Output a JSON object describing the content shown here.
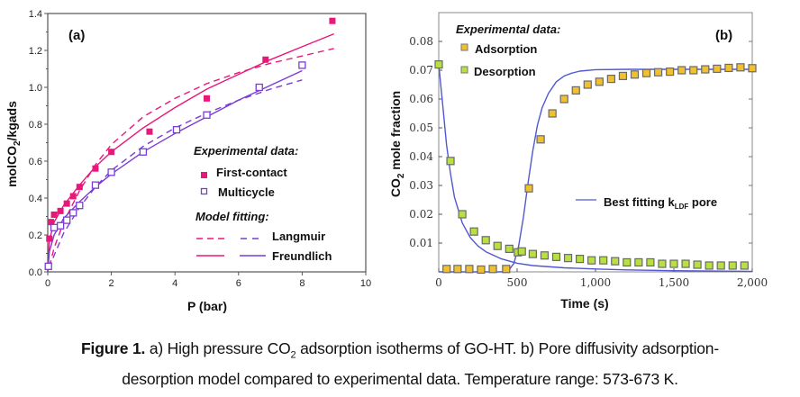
{
  "chart_data": [
    {
      "type": "scatter",
      "panel_label": "(a)",
      "xlabel": "P (bar)",
      "ylabel": "molCO2/kgads",
      "ylabel_parts": {
        "pre": "molCO",
        "sub": "2",
        "post": "/kgads"
      },
      "xlim": [
        0,
        10
      ],
      "ylim": [
        0,
        1.4
      ],
      "xticks": [
        "0",
        "2",
        "4",
        "6",
        "8",
        "10"
      ],
      "xtick_values": [
        0,
        2,
        4,
        6,
        8,
        10
      ],
      "yticks": [
        "0.0",
        "0.2",
        "0.4",
        "0.6",
        "0.8",
        "1.0",
        "1.2",
        "1.4"
      ],
      "ytick_values": [
        0,
        0.2,
        0.4,
        0.6,
        0.8,
        1.0,
        1.2,
        1.4
      ],
      "grid": false,
      "legend_placement": "lower-right",
      "legend": {
        "experimental_title": "Experimental data:",
        "model_title": "Model fitting:",
        "entries": [
          "First-contact",
          "Multicycle",
          "Langmuir",
          "Freundlich"
        ]
      },
      "series": [
        {
          "name": "First-contact",
          "kind": "points",
          "marker": "filled-square",
          "color": "#e8177a",
          "x": [
            0.05,
            0.1,
            0.2,
            0.4,
            0.6,
            0.8,
            1.0,
            1.5,
            2.0,
            3.2,
            5.0,
            6.85,
            8.95
          ],
          "y": [
            0.18,
            0.27,
            0.31,
            0.33,
            0.37,
            0.41,
            0.46,
            0.56,
            0.65,
            0.76,
            0.94,
            1.15,
            1.36
          ]
        },
        {
          "name": "Multicycle",
          "kind": "points",
          "marker": "open-square",
          "color": "#7a3cd6",
          "x": [
            0.02,
            0.2,
            0.4,
            0.6,
            0.8,
            1.0,
            1.5,
            2.0,
            3.0,
            4.05,
            5.0,
            6.65,
            8.0
          ],
          "y": [
            0.03,
            0.24,
            0.25,
            0.28,
            0.32,
            0.36,
            0.47,
            0.54,
            0.65,
            0.77,
            0.85,
            1.0,
            1.12
          ]
        },
        {
          "name": "Langmuir (First-contact)",
          "kind": "line",
          "style": "dashed",
          "color": "#e8177a",
          "x": [
            0.05,
            0.2,
            0.5,
            1.0,
            1.5,
            2.0,
            3.0,
            4.0,
            5.0,
            6.0,
            7.0,
            8.0,
            9.0
          ],
          "y": [
            0.03,
            0.13,
            0.27,
            0.44,
            0.58,
            0.69,
            0.84,
            0.94,
            1.02,
            1.08,
            1.13,
            1.17,
            1.21
          ]
        },
        {
          "name": "Freundlich (First-contact)",
          "kind": "line",
          "style": "solid",
          "color": "#e8177a",
          "x": [
            0.0,
            0.05,
            0.2,
            0.5,
            1.0,
            1.5,
            2.0,
            3.0,
            4.0,
            5.0,
            6.0,
            7.0,
            8.0,
            9.0
          ],
          "y": [
            0.0,
            0.17,
            0.27,
            0.36,
            0.47,
            0.57,
            0.65,
            0.78,
            0.89,
            0.99,
            1.07,
            1.15,
            1.22,
            1.29
          ]
        },
        {
          "name": "Langmuir (Multicycle)",
          "kind": "line",
          "style": "dashed",
          "color": "#7a3cd6",
          "x": [
            0.05,
            0.2,
            0.5,
            1.0,
            1.5,
            2.0,
            3.0,
            4.0,
            5.0,
            6.0,
            7.0,
            8.0
          ],
          "y": [
            0.02,
            0.09,
            0.21,
            0.35,
            0.46,
            0.55,
            0.68,
            0.78,
            0.86,
            0.93,
            0.99,
            1.04
          ]
        },
        {
          "name": "Freundlich (Multicycle)",
          "kind": "line",
          "style": "solid",
          "color": "#7a3cd6",
          "x": [
            0.0,
            0.05,
            0.2,
            0.5,
            1.0,
            1.5,
            2.0,
            3.0,
            4.0,
            5.0,
            6.0,
            7.0,
            8.0
          ],
          "y": [
            0.0,
            0.11,
            0.2,
            0.29,
            0.38,
            0.46,
            0.53,
            0.65,
            0.75,
            0.84,
            0.93,
            1.01,
            1.09
          ]
        }
      ]
    },
    {
      "type": "scatter",
      "panel_label": "(b)",
      "xlabel": "Time (s)",
      "ylabel": "CO2 mole fraction",
      "ylabel_parts": {
        "pre": "CO",
        "sub": "2",
        "post": " mole fraction"
      },
      "xlim": [
        0,
        2000
      ],
      "ylim": [
        0,
        0.09
      ],
      "xticks": [
        "0",
        "500",
        "1,000",
        "1,500",
        "2,000"
      ],
      "xtick_values": [
        0,
        500,
        1000,
        1500,
        2000
      ],
      "yticks": [
        "0.01",
        "0.02",
        "0.03",
        "0.04",
        "0.05",
        "0.06",
        "0.07",
        "0.08"
      ],
      "ytick_values": [
        0.01,
        0.02,
        0.03,
        0.04,
        0.05,
        0.06,
        0.07,
        0.08
      ],
      "grid": false,
      "legend_placement": "top-left and middle-right",
      "legend": {
        "experimental_title": "Experimental data:",
        "entries": [
          "Adsorption",
          "Desorption",
          "Best fitting k"
        ],
        "fit_label": {
          "pre": "Best fitting k",
          "sub": "LDF",
          "post": " pore"
        }
      },
      "series": [
        {
          "name": "Adsorption",
          "kind": "points",
          "marker": "square",
          "color": "#f0c030",
          "x": [
            50,
            120,
            195,
            270,
            345,
            430,
            575,
            650,
            725,
            800,
            875,
            950,
            1025,
            1100,
            1175,
            1250,
            1325,
            1400,
            1475,
            1550,
            1625,
            1700,
            1775,
            1850,
            1925,
            2000
          ],
          "y": [
            0.001,
            0.001,
            0.001,
            0.0008,
            0.001,
            0.001,
            0.029,
            0.046,
            0.055,
            0.06,
            0.063,
            0.065,
            0.066,
            0.067,
            0.068,
            0.0685,
            0.069,
            0.0693,
            0.0695,
            0.07,
            0.07,
            0.0703,
            0.0705,
            0.0708,
            0.071,
            0.0707
          ]
        },
        {
          "name": "Desorption",
          "kind": "points",
          "marker": "square",
          "color": "#b8e040",
          "x": [
            0,
            75,
            150,
            225,
            300,
            375,
            450,
            505,
            530,
            600,
            675,
            750,
            825,
            900,
            975,
            1050,
            1125,
            1200,
            1275,
            1350,
            1425,
            1500,
            1575,
            1650,
            1725,
            1800,
            1875,
            1950
          ],
          "y": [
            0.072,
            0.0385,
            0.02,
            0.014,
            0.011,
            0.009,
            0.008,
            0.0068,
            0.0071,
            0.0062,
            0.0057,
            0.0052,
            0.0048,
            0.0045,
            0.004,
            0.004,
            0.0037,
            0.0033,
            0.0033,
            0.0033,
            0.0028,
            0.0028,
            0.0028,
            0.0025,
            0.0022,
            0.0022,
            0.0022,
            0.0022
          ]
        },
        {
          "name": "Best fitting kLDF pore (adsorption)",
          "kind": "line",
          "style": "solid",
          "color": "#5058d0",
          "x": [
            0,
            400,
            450,
            480,
            510,
            540,
            570,
            600,
            630,
            660,
            700,
            750,
            800,
            850,
            900,
            1000,
            1200,
            1500,
            2000
          ],
          "y": [
            0.0,
            0.0,
            0.0008,
            0.003,
            0.009,
            0.019,
            0.031,
            0.042,
            0.051,
            0.057,
            0.062,
            0.066,
            0.068,
            0.069,
            0.0697,
            0.0702,
            0.0703,
            0.0703,
            0.0703
          ]
        },
        {
          "name": "Best fitting kLDF pore (desorption)",
          "kind": "line",
          "style": "solid",
          "color": "#5058d0",
          "x": [
            0,
            25,
            50,
            75,
            100,
            150,
            200,
            250,
            300,
            400,
            500,
            600,
            800,
            1000,
            1200,
            1500,
            2000
          ],
          "y": [
            0.072,
            0.058,
            0.044,
            0.034,
            0.026,
            0.017,
            0.012,
            0.009,
            0.007,
            0.0045,
            0.003,
            0.0022,
            0.0014,
            0.001,
            0.0007,
            0.0004,
            0.0002
          ]
        }
      ]
    }
  ],
  "caption": {
    "label": "Figure 1.",
    "line1_pre": " a) High pressure CO",
    "line1_sub": "2",
    "line1_post": " adsorption isotherms of GO-HT. b) Pore diffusivity adsorption-",
    "line2": "desorption model compared to experimental data. Temperature range: 573-673 K."
  }
}
